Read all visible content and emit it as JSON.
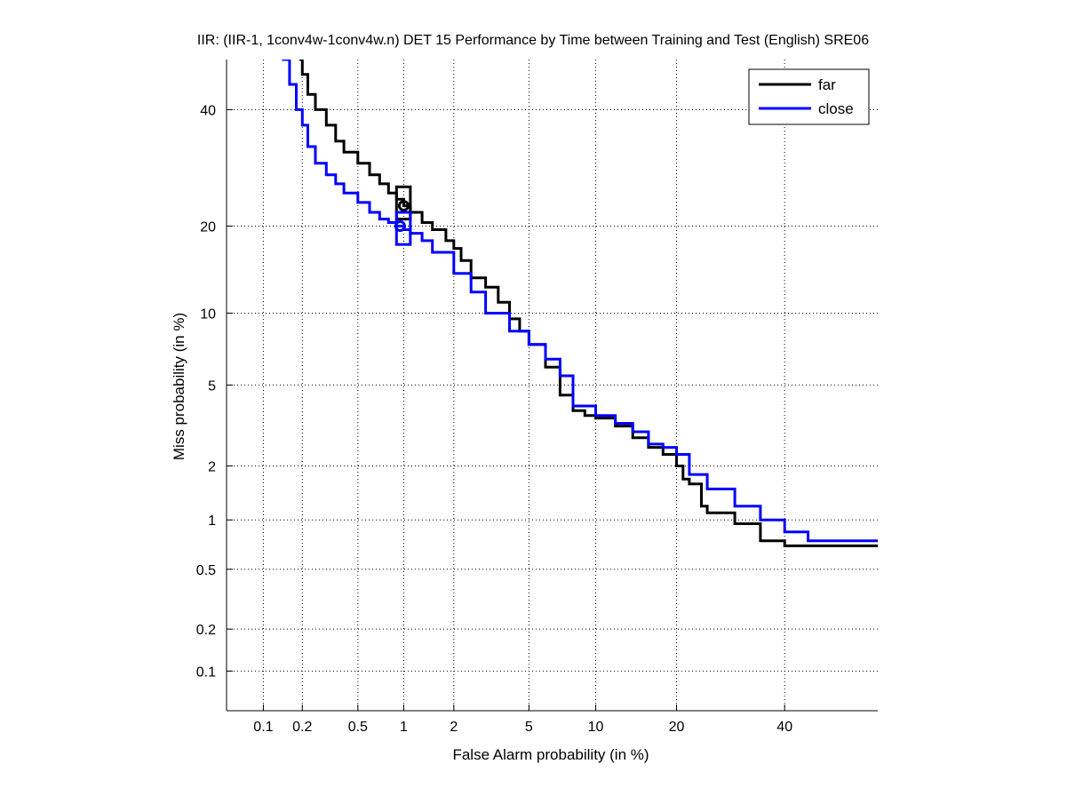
{
  "chart_data": {
    "type": "line",
    "title": "IIR: (IIR-1, 1conv4w-1conv4w.n) DET 15 Performance by Time between Training and Test (English) SRE06",
    "xlabel": "False Alarm probability (in %)",
    "ylabel": "Miss probability (in %)",
    "x_scale": "normal-deviate (probit)",
    "y_scale": "normal-deviate (probit)",
    "xlim": [
      0.05,
      60
    ],
    "ylim": [
      0.05,
      50
    ],
    "x_ticks": [
      "0.1",
      "0.2",
      "0.5",
      "1",
      "2",
      "5",
      "10",
      "20",
      "40"
    ],
    "y_ticks": [
      "0.1",
      "0.2",
      "0.5",
      "1",
      "2",
      "5",
      "10",
      "20",
      "40"
    ],
    "grid": true,
    "legend_position": "top-right",
    "series": [
      {
        "name": "far",
        "color": "#000000",
        "x": [
          0.19,
          0.2,
          0.22,
          0.25,
          0.3,
          0.35,
          0.4,
          0.5,
          0.6,
          0.7,
          0.8,
          0.9,
          1.0,
          1.1,
          1.3,
          1.5,
          1.8,
          2.0,
          2.2,
          2.5,
          3.0,
          3.5,
          4.0,
          4.5,
          5.0,
          6.0,
          7.0,
          8.0,
          9.0,
          10.0,
          12.0,
          14.0,
          16.0,
          18.0,
          20.0,
          21.0,
          22.0,
          24.0,
          25.0,
          28.0,
          30.0,
          35.0,
          40.0,
          50.0,
          60.0
        ],
        "y": [
          50.0,
          47.0,
          43.0,
          40.0,
          37.0,
          34.0,
          32.0,
          30.0,
          28.0,
          26.5,
          25.0,
          24.0,
          23.0,
          22.0,
          20.5,
          19.5,
          18.0,
          17.0,
          15.5,
          13.5,
          12.5,
          11.0,
          9.5,
          8.5,
          7.5,
          6.0,
          4.5,
          3.8,
          3.6,
          3.5,
          3.2,
          2.8,
          2.5,
          2.3,
          2.0,
          1.7,
          1.6,
          1.2,
          1.1,
          1.1,
          0.95,
          0.75,
          0.7,
          0.7,
          0.7
        ]
      },
      {
        "name": "close",
        "color": "#0000ff",
        "x": [
          0.14,
          0.16,
          0.18,
          0.2,
          0.22,
          0.25,
          0.3,
          0.35,
          0.4,
          0.5,
          0.6,
          0.7,
          0.8,
          0.9,
          1.0,
          1.1,
          1.3,
          1.5,
          2.0,
          2.5,
          3.0,
          4.0,
          5.0,
          6.0,
          7.0,
          8.0,
          10.0,
          12.0,
          14.0,
          16.0,
          18.0,
          20.0,
          22.0,
          25.0,
          30.0,
          35.0,
          40.0,
          45.0,
          60.0
        ],
        "y": [
          50.0,
          45.0,
          40.0,
          37.0,
          33.0,
          30.0,
          28.0,
          26.5,
          25.0,
          23.5,
          22.0,
          21.0,
          20.5,
          20.0,
          19.5,
          19.0,
          18.0,
          16.5,
          14.0,
          12.0,
          10.0,
          8.5,
          7.5,
          6.5,
          5.5,
          4.0,
          3.6,
          3.3,
          3.0,
          2.6,
          2.5,
          2.3,
          1.8,
          1.5,
          1.2,
          1.0,
          0.85,
          0.75,
          0.75
        ]
      }
    ],
    "markers": [
      {
        "series": "far",
        "type": "circle",
        "x": 1.0,
        "y": 23.0
      },
      {
        "series": "far",
        "type": "box",
        "x_range": [
          0.9,
          1.1
        ],
        "y_range": [
          21.0,
          26.0
        ]
      },
      {
        "series": "close",
        "type": "circle",
        "x": 0.95,
        "y": 20.0
      },
      {
        "series": "close",
        "type": "box",
        "x_range": [
          0.9,
          1.1
        ],
        "y_range": [
          17.5,
          22.0
        ]
      }
    ]
  }
}
